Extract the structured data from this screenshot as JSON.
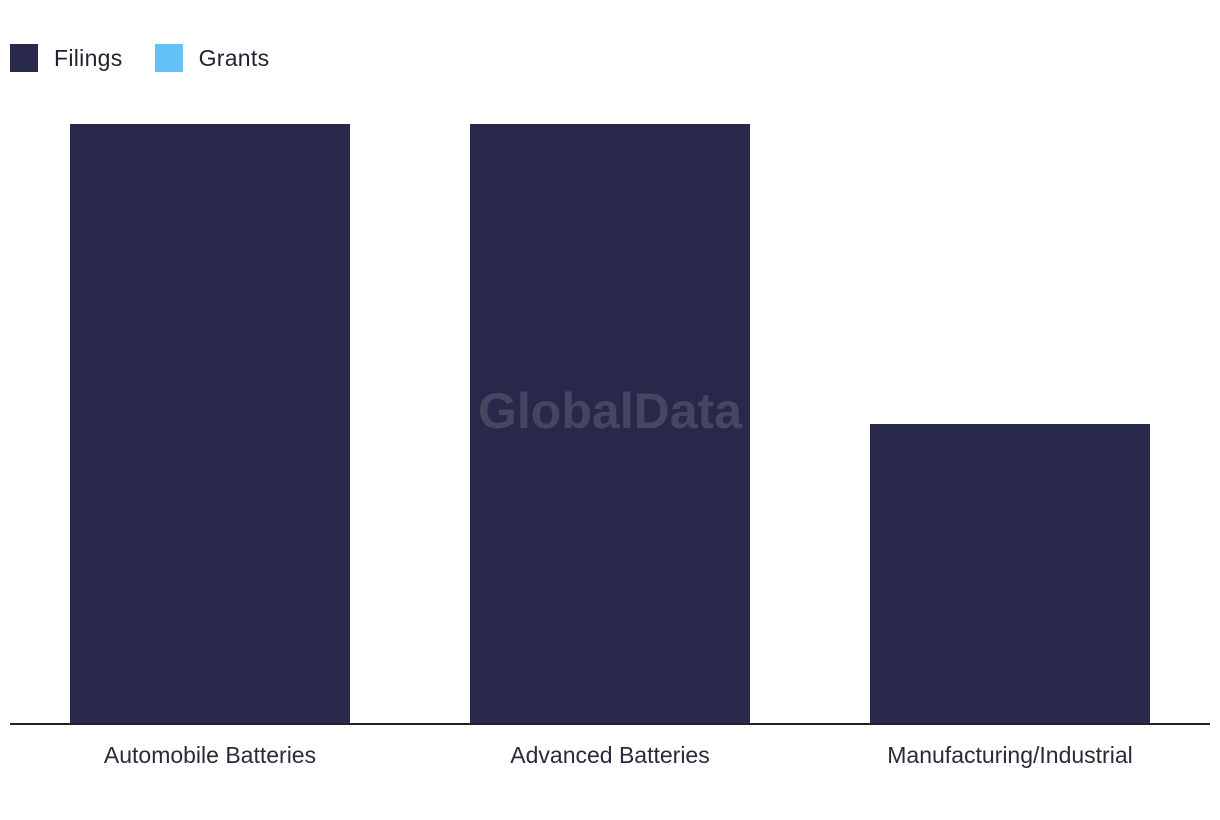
{
  "legend": {
    "items": [
      {
        "label": "Filings",
        "color": "#28284a"
      },
      {
        "label": "Grants",
        "color": "#62c1f6"
      }
    ]
  },
  "watermark": "GlobalData",
  "chart_data": {
    "type": "bar",
    "categories": [
      "Automobile Batteries",
      "Advanced Batteries",
      "Manufacturing/Industrial"
    ],
    "series": [
      {
        "name": "Filings",
        "color": "#28284a",
        "values": [
          2,
          2,
          1
        ]
      },
      {
        "name": "Grants",
        "color": "#62c1f6",
        "values": [
          0,
          0,
          0
        ]
      }
    ],
    "ylim": [
      0,
      2
    ],
    "grid": false,
    "legend_position": "top-left"
  }
}
